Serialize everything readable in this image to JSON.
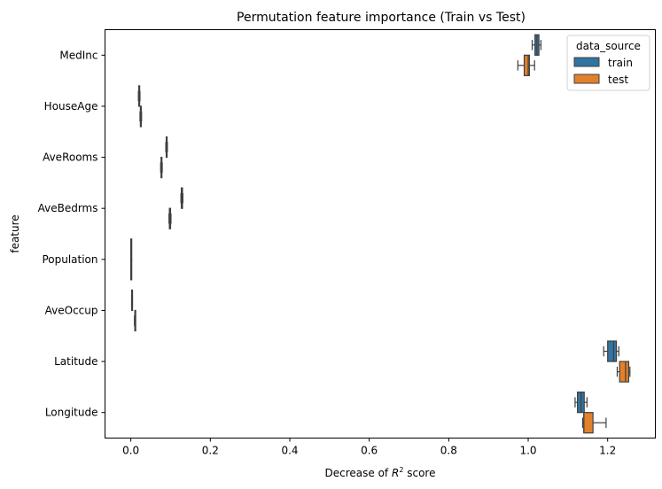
{
  "chart_data": {
    "type": "boxplot",
    "orientation": "horizontal",
    "title": "Permutation feature importance (Train vs Test)",
    "xlabel": "Decrease of R^2 score",
    "ylabel": "feature",
    "xlim": [
      -0.065,
      1.32
    ],
    "xticks": [
      0.0,
      0.2,
      0.4,
      0.6,
      0.8,
      1.0,
      1.2
    ],
    "xtick_labels": [
      "0.0",
      "0.2",
      "0.4",
      "0.6",
      "0.8",
      "1.0",
      "1.2"
    ],
    "categories": [
      "MedInc",
      "HouseAge",
      "AveRooms",
      "AveBedrms",
      "Population",
      "AveOccup",
      "Latitude",
      "Longitude"
    ],
    "legend": {
      "title": "data_source",
      "position": "upper right",
      "entries": [
        "train",
        "test"
      ]
    },
    "series": [
      {
        "name": "train",
        "color": "#3274a1",
        "boxes": [
          {
            "min": 1.01,
            "q1": 1.017,
            "median": 1.022,
            "q3": 1.027,
            "max": 1.032
          },
          {
            "min": 0.019,
            "q1": 0.02,
            "median": 0.021,
            "q3": 0.022,
            "max": 0.023
          },
          {
            "min": 0.088,
            "q1": 0.089,
            "median": 0.09,
            "q3": 0.091,
            "max": 0.092
          },
          {
            "min": 0.126,
            "q1": 0.127,
            "median": 0.128,
            "q3": 0.13,
            "max": 0.131
          },
          {
            "min": 0.0,
            "q1": 0.0,
            "median": 0.0,
            "q3": 0.001,
            "max": 0.001
          },
          {
            "min": 0.002,
            "q1": 0.002,
            "median": 0.003,
            "q3": 0.003,
            "max": 0.004
          },
          {
            "min": 1.19,
            "q1": 1.2,
            "median": 1.215,
            "q3": 1.222,
            "max": 1.228
          },
          {
            "min": 1.118,
            "q1": 1.124,
            "median": 1.133,
            "q3": 1.141,
            "max": 1.148
          }
        ]
      },
      {
        "name": "test",
        "color": "#e1812c",
        "boxes": [
          {
            "min": 0.974,
            "q1": 0.99,
            "median": 1.0,
            "q3": 1.003,
            "max": 1.016
          },
          {
            "min": 0.023,
            "q1": 0.024,
            "median": 0.025,
            "q3": 0.026,
            "max": 0.027
          },
          {
            "min": 0.075,
            "q1": 0.076,
            "median": 0.077,
            "q3": 0.078,
            "max": 0.079
          },
          {
            "min": 0.096,
            "q1": 0.097,
            "median": 0.098,
            "q3": 0.1,
            "max": 0.101
          },
          {
            "min": 0.0,
            "q1": 0.0,
            "median": 0.0,
            "q3": 0.001,
            "max": 0.001
          },
          {
            "min": 0.009,
            "q1": 0.01,
            "median": 0.01,
            "q3": 0.011,
            "max": 0.011
          },
          {
            "min": 1.224,
            "q1": 1.23,
            "median": 1.245,
            "q3": 1.253,
            "max": 1.256
          },
          {
            "min": 1.137,
            "q1": 1.14,
            "median": 1.14,
            "q3": 1.163,
            "max": 1.196
          }
        ]
      }
    ]
  }
}
